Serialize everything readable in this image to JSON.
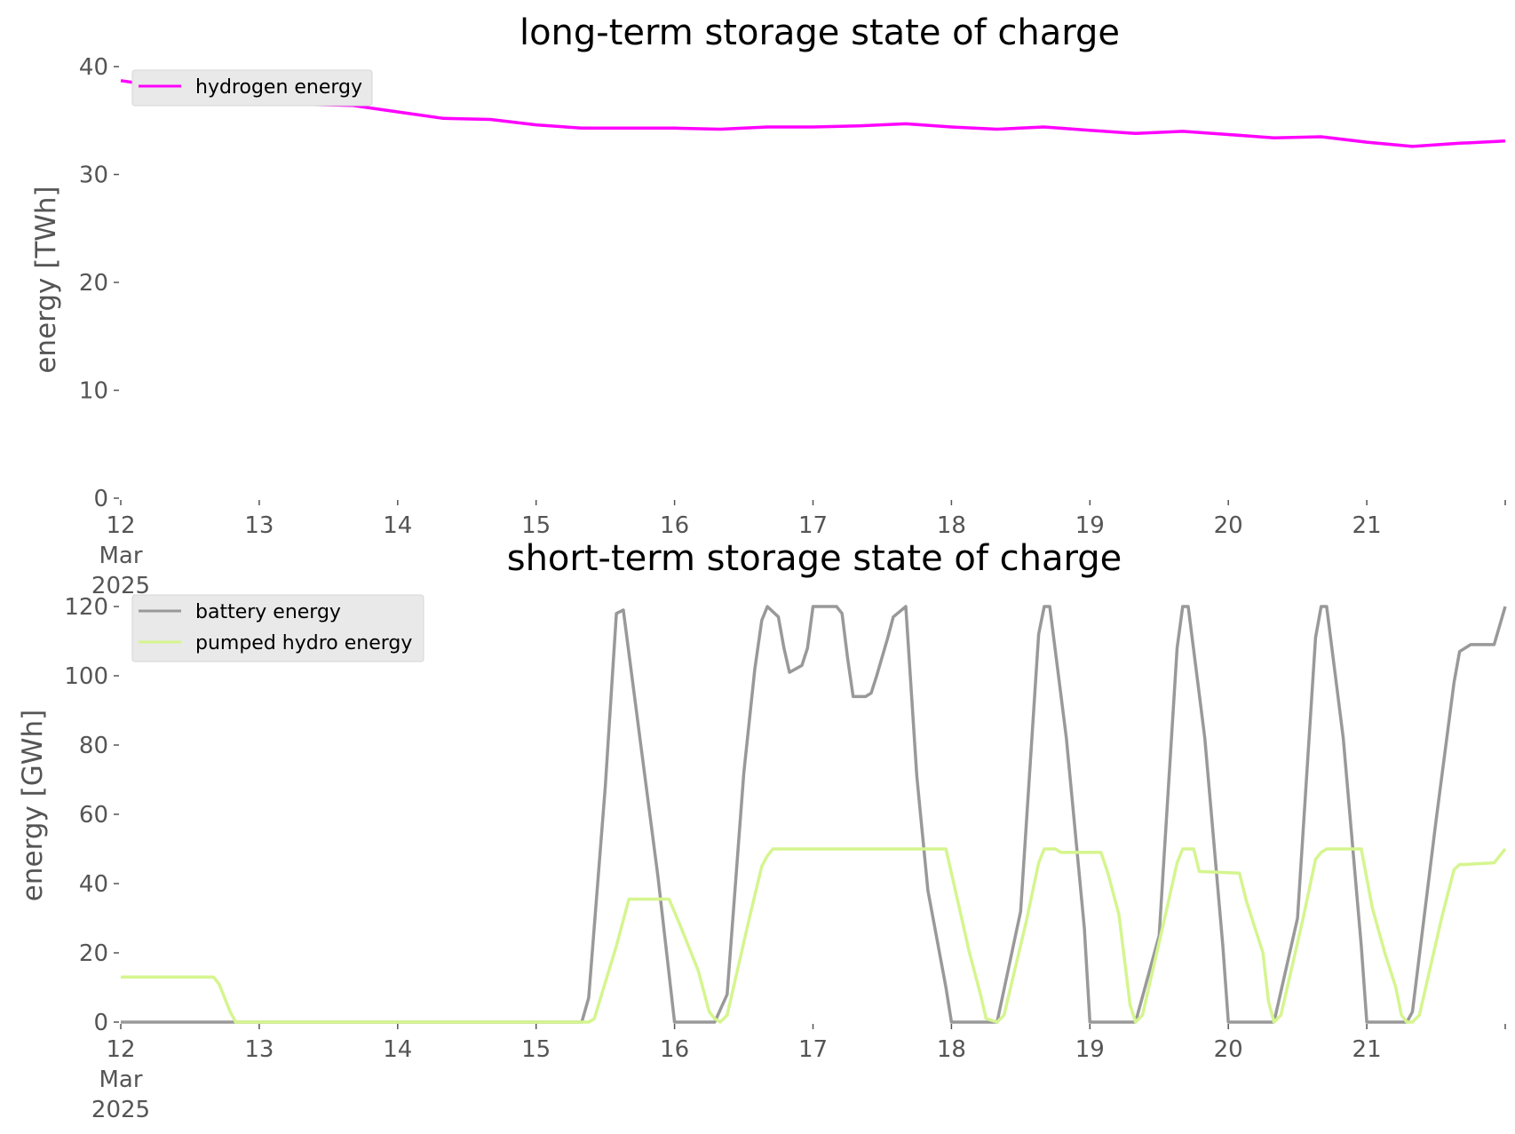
{
  "chart_data": [
    {
      "type": "line",
      "title": "long-term storage state of charge",
      "xlabel": "",
      "ylabel": "energy [TWh]",
      "x_ticks": [
        "12",
        "13",
        "14",
        "15",
        "16",
        "17",
        "18",
        "19",
        "20",
        "21"
      ],
      "x_first_tick_extra": [
        "Mar",
        "2025"
      ],
      "xlim": [
        12,
        22
      ],
      "ylim": [
        0,
        40
      ],
      "y_ticks": [
        0,
        10,
        20,
        30,
        40
      ],
      "grid": false,
      "legend": "top-left",
      "series": [
        {
          "name": "hydrogen energy",
          "color": "#ff00ff",
          "x": [
            12.0,
            12.33,
            12.67,
            13.0,
            13.33,
            13.67,
            14.0,
            14.33,
            14.67,
            15.0,
            15.33,
            15.67,
            16.0,
            16.33,
            16.67,
            17.0,
            17.33,
            17.67,
            18.0,
            18.33,
            18.67,
            19.0,
            19.33,
            19.67,
            20.0,
            20.33,
            20.67,
            21.0,
            21.33,
            21.67,
            22.0
          ],
          "y": [
            38.7,
            38.1,
            37.7,
            37.2,
            36.5,
            36.4,
            35.8,
            35.2,
            35.1,
            34.6,
            34.3,
            34.3,
            34.3,
            34.2,
            34.4,
            34.4,
            34.5,
            34.7,
            34.4,
            34.2,
            34.4,
            34.1,
            33.8,
            34.0,
            33.7,
            33.4,
            33.5,
            33.0,
            32.6,
            32.9,
            33.1
          ]
        }
      ]
    },
    {
      "type": "line",
      "title": "short-term storage state of charge",
      "xlabel": "",
      "ylabel": "energy [GWh]",
      "x_ticks": [
        "12",
        "13",
        "14",
        "15",
        "16",
        "17",
        "18",
        "19",
        "20",
        "21"
      ],
      "x_first_tick_extra": [
        "Mar",
        "2025"
      ],
      "xlim": [
        12,
        22
      ],
      "ylim": [
        0,
        120
      ],
      "y_ticks": [
        0,
        20,
        40,
        60,
        80,
        100,
        120
      ],
      "grid": false,
      "legend": "top-left",
      "series": [
        {
          "name": "battery energy",
          "color": "#999999",
          "x": [
            12.0,
            15.33,
            15.38,
            15.5,
            15.58,
            15.63,
            15.75,
            15.88,
            16.0,
            16.29,
            16.38,
            16.5,
            16.58,
            16.63,
            16.67,
            16.75,
            16.79,
            16.83,
            16.92,
            16.96,
            17.0,
            17.08,
            17.17,
            17.21,
            17.25,
            17.29,
            17.38,
            17.42,
            17.46,
            17.54,
            17.58,
            17.67,
            17.75,
            17.83,
            17.96,
            18.0,
            18.33,
            18.5,
            18.63,
            18.67,
            18.71,
            18.83,
            18.96,
            19.0,
            19.33,
            19.5,
            19.63,
            19.67,
            19.71,
            19.83,
            19.96,
            20.0,
            20.33,
            20.5,
            20.63,
            20.67,
            20.71,
            20.83,
            20.96,
            21.0,
            21.29,
            21.33,
            21.5,
            21.63,
            21.67,
            21.75,
            21.83,
            21.92,
            22.0
          ],
          "y": [
            0,
            0,
            7,
            68,
            118,
            119,
            82,
            42,
            0,
            0,
            8,
            72,
            102,
            116,
            120,
            117,
            108,
            101,
            103,
            108,
            120,
            120,
            120,
            118,
            105,
            94,
            94,
            95,
            100,
            111,
            117,
            120,
            71,
            38,
            10,
            0,
            0,
            32,
            112,
            120,
            120,
            82,
            27,
            0,
            0,
            25,
            108,
            120,
            120,
            82,
            22,
            0,
            0,
            30,
            111,
            120,
            120,
            82,
            22,
            0,
            0,
            3,
            58,
            98,
            107,
            109,
            109,
            109,
            120
          ]
        },
        {
          "name": "pumped hydro energy",
          "color": "#d5f58f",
          "x": [
            12.0,
            12.67,
            12.71,
            12.79,
            12.83,
            15.38,
            15.42,
            15.58,
            15.67,
            15.96,
            16.04,
            16.17,
            16.25,
            16.29,
            16.33,
            16.38,
            16.54,
            16.63,
            16.67,
            16.71,
            17.92,
            17.96,
            18.04,
            18.13,
            18.21,
            18.25,
            18.33,
            18.38,
            18.54,
            18.63,
            18.67,
            18.75,
            18.79,
            19.08,
            19.13,
            19.21,
            19.25,
            19.29,
            19.33,
            19.38,
            19.54,
            19.63,
            19.67,
            19.75,
            19.79,
            20.08,
            20.13,
            20.21,
            20.25,
            20.29,
            20.33,
            20.38,
            20.54,
            20.63,
            20.67,
            20.71,
            20.96,
            21.04,
            21.13,
            21.21,
            21.25,
            21.29,
            21.33,
            21.38,
            21.54,
            21.63,
            21.67,
            21.71,
            21.92,
            22.0
          ],
          "y": [
            13,
            13,
            11,
            3,
            0,
            0,
            1,
            22,
            35.5,
            35.5,
            28,
            15,
            3,
            1,
            0,
            2,
            30,
            45,
            48,
            50,
            50,
            50,
            36,
            20,
            8,
            1,
            0,
            2,
            29,
            46,
            50,
            50,
            49,
            49,
            43,
            31,
            18,
            5,
            0,
            2,
            30,
            46,
            50,
            50,
            43.5,
            43,
            35,
            25,
            20,
            6,
            0,
            2,
            30,
            47,
            49,
            50,
            50,
            33,
            20,
            10,
            2,
            0,
            0,
            2,
            30,
            44,
            45.5,
            45.5,
            46,
            50
          ]
        }
      ]
    }
  ]
}
